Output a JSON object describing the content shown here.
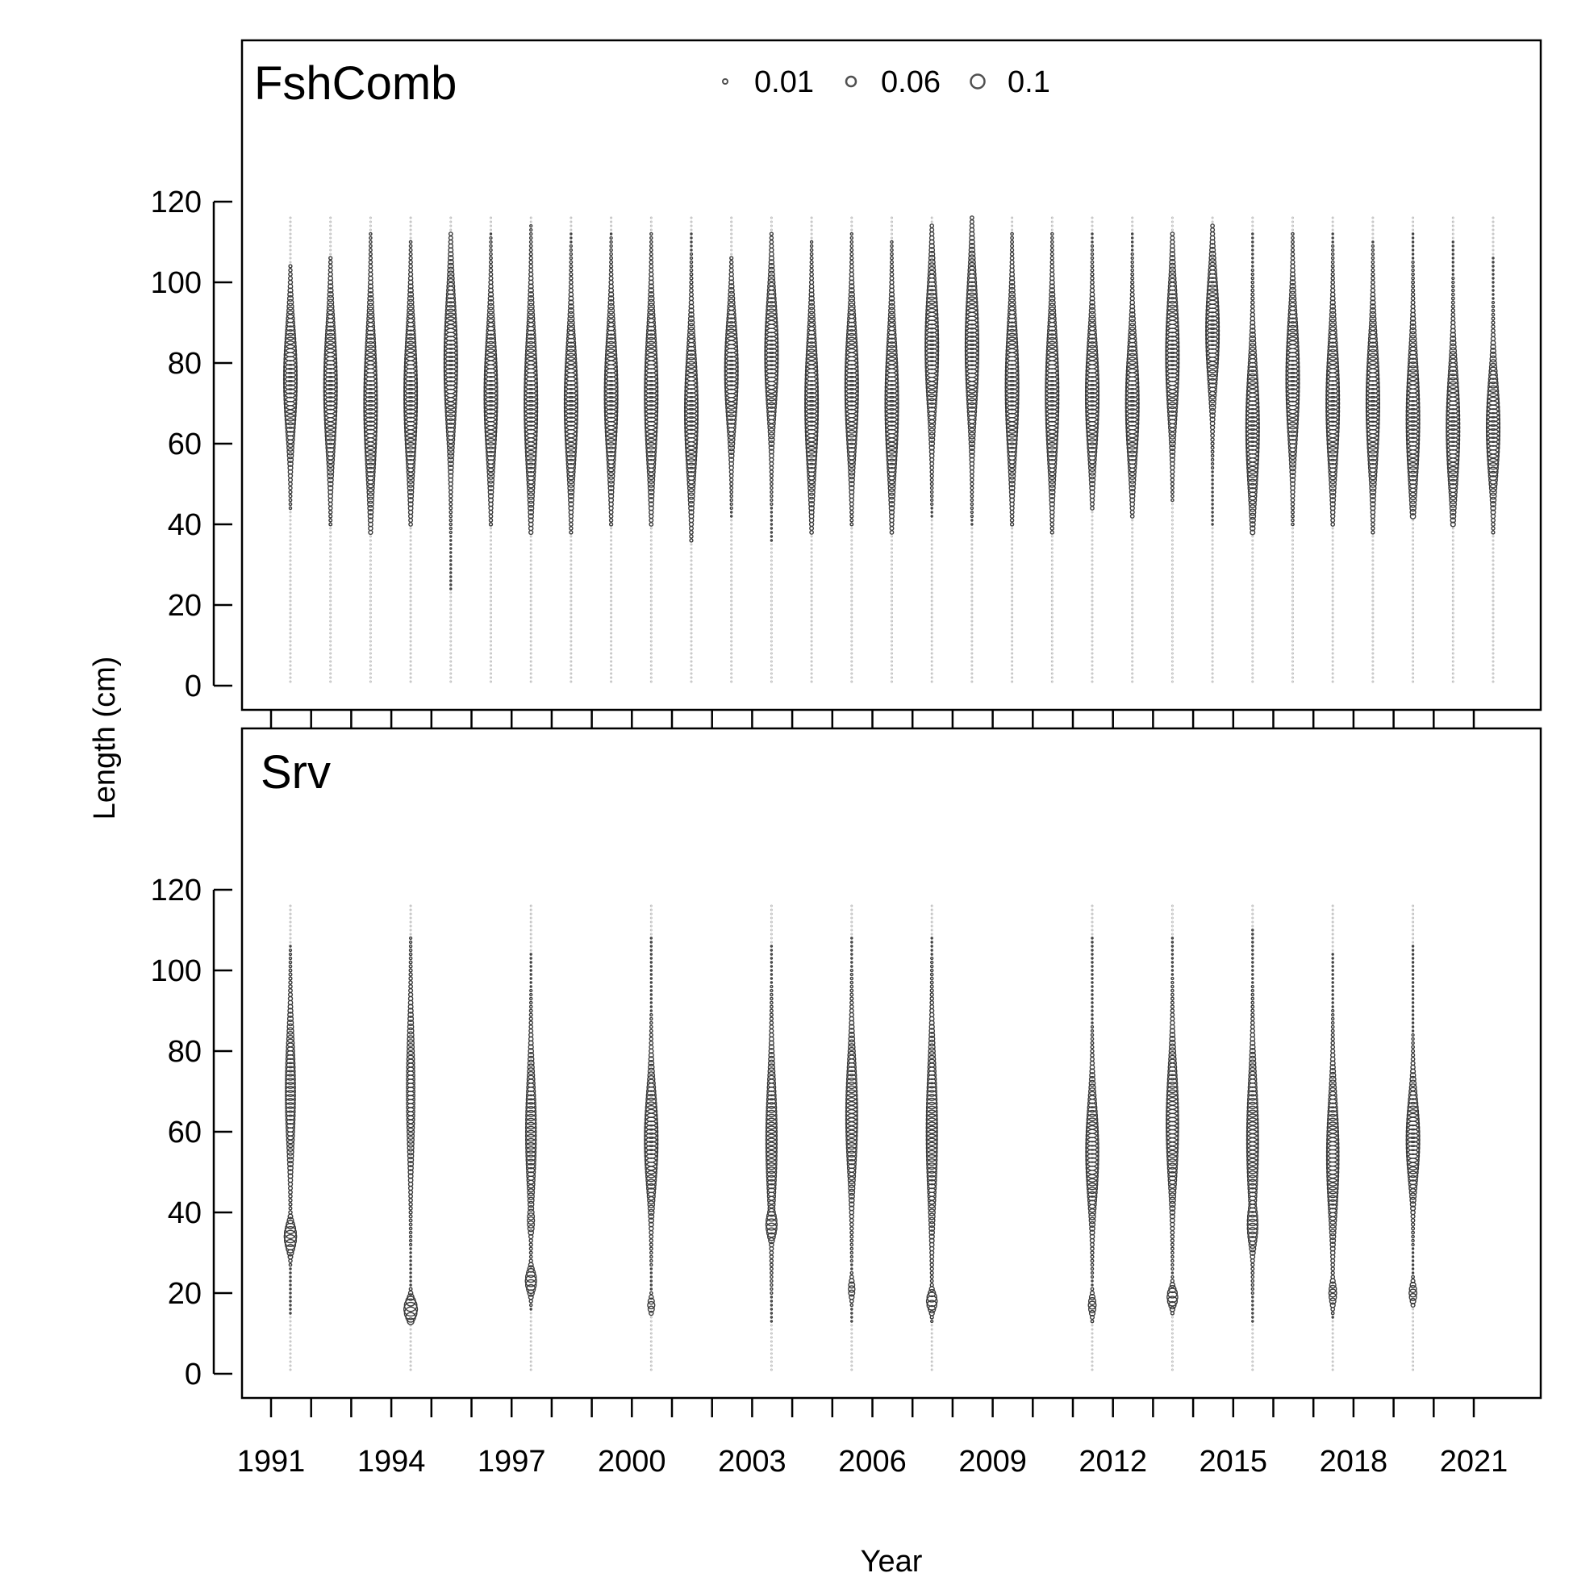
{
  "chart_data": {
    "type": "scatter",
    "subtype": "bubble",
    "xlabel": "Year",
    "ylabel": "Length (cm)",
    "x_ticks": [
      1991,
      1994,
      1997,
      2000,
      2003,
      2006,
      2009,
      2012,
      2015,
      2018,
      2021
    ],
    "y_ticks": [
      0,
      20,
      40,
      60,
      80,
      100,
      120
    ],
    "ylim": [
      0,
      120
    ],
    "bin_range_cm": [
      1,
      116
    ],
    "legend": {
      "placement": "top-center",
      "entries": [
        "0.01",
        "0.06",
        "0.1"
      ]
    },
    "panels": [
      {
        "title": "FshComb",
        "years": [
          1991,
          1992,
          1993,
          1994,
          1995,
          1996,
          1997,
          1998,
          1999,
          2000,
          2001,
          2002,
          2003,
          2004,
          2005,
          2006,
          2007,
          2008,
          2009,
          2010,
          2011,
          2012,
          2013,
          2014,
          2015,
          2016,
          2017,
          2018,
          2019,
          2020,
          2021
        ],
        "mode_cm": [
          76,
          74,
          70,
          72,
          80,
          72,
          70,
          70,
          72,
          72,
          68,
          78,
          82,
          70,
          74,
          70,
          84,
          84,
          74,
          72,
          72,
          70,
          82,
          88,
          64,
          76,
          70,
          70,
          66,
          64,
          64
        ],
        "spread_cm": [
          13,
          15,
          17,
          16,
          16,
          15,
          17,
          15,
          15,
          16,
          15,
          13,
          14,
          16,
          15,
          16,
          15,
          16,
          16,
          16,
          14,
          14,
          15,
          13,
          15,
          15,
          15,
          15,
          15,
          14,
          12
        ],
        "min_cm": [
          44,
          40,
          38,
          40,
          24,
          40,
          38,
          38,
          40,
          40,
          36,
          42,
          36,
          38,
          40,
          38,
          42,
          40,
          40,
          38,
          44,
          42,
          46,
          40,
          38,
          40,
          40,
          38,
          42,
          40,
          38
        ],
        "max_cm": [
          104,
          106,
          112,
          110,
          112,
          112,
          114,
          112,
          112,
          112,
          112,
          106,
          112,
          110,
          112,
          110,
          114,
          116,
          112,
          112,
          112,
          112,
          112,
          114,
          112,
          112,
          112,
          110,
          112,
          110,
          106
        ]
      },
      {
        "title": "Srv",
        "years": [
          1991,
          1994,
          1997,
          2000,
          2003,
          2005,
          2007,
          2011,
          2013,
          2015,
          2017,
          2019
        ],
        "modes": [
          [
            [
              34,
              3,
              0.9
            ],
            [
              70,
              14,
              0.7
            ]
          ],
          [
            [
              16,
              2.2,
              1.0
            ],
            [
              70,
              16,
              0.55
            ]
          ],
          [
            [
              23,
              2.5,
              0.8
            ],
            [
              60,
              14,
              0.75
            ],
            [
              38,
              3,
              0.45
            ]
          ],
          [
            [
              17,
              1.5,
              0.45
            ],
            [
              58,
              12,
              1.0
            ]
          ],
          [
            [
              37,
              3,
              0.8
            ],
            [
              58,
              15,
              0.8
            ]
          ],
          [
            [
              21,
              2,
              0.4
            ],
            [
              64,
              14,
              0.85
            ]
          ],
          [
            [
              18,
              2,
              0.75
            ],
            [
              60,
              17,
              0.8
            ]
          ],
          [
            [
              17,
              2,
              0.5
            ],
            [
              55,
              12,
              0.95
            ]
          ],
          [
            [
              19,
              2,
              0.75
            ],
            [
              62,
              14,
              0.9
            ]
          ],
          [
            [
              37,
              5,
              0.75
            ],
            [
              58,
              15,
              0.85
            ]
          ],
          [
            [
              20,
              2.5,
              0.5
            ],
            [
              54,
              14,
              0.9
            ]
          ],
          [
            [
              20,
              2,
              0.5
            ],
            [
              58,
              10,
              1.0
            ]
          ]
        ],
        "min_cm": [
          15,
          13,
          16,
          15,
          13,
          13,
          13,
          13,
          15,
          13,
          14,
          17
        ],
        "max_cm": [
          106,
          108,
          104,
          108,
          106,
          108,
          108,
          108,
          108,
          110,
          104,
          106
        ]
      }
    ]
  }
}
